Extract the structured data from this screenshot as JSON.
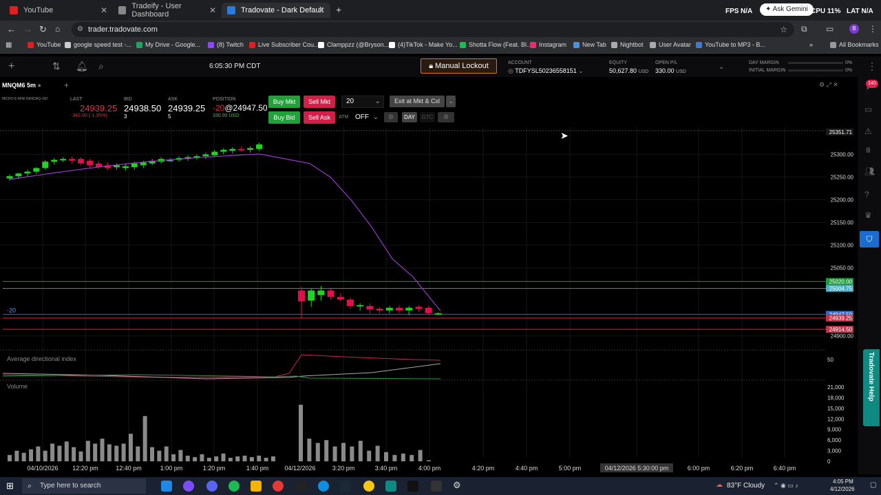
{
  "browser": {
    "tabs": [
      {
        "title": "YouTube",
        "color": "#e02020"
      },
      {
        "title": "Tradeify - User Dashboard",
        "color": "#888888"
      },
      {
        "title": "Tradovate - Dark Default",
        "color": "#2a7ae0"
      }
    ],
    "url": "trader.tradovate.com",
    "right_status": {
      "fps_label": "FPS",
      "fps_value": "N/A",
      "cpu": "CPU 11%",
      "lat": "LAT N/A",
      "gemini": "Ask Gemini"
    },
    "bookmarks": [
      {
        "label": "YouTube",
        "color": "#e02020"
      },
      {
        "label": "google speed test -...",
        "color": "#cccccc"
      },
      {
        "label": "My Drive - Google...",
        "color": "#1fa463"
      },
      {
        "label": "(8) Twitch",
        "color": "#9146ff"
      },
      {
        "label": "Live Subscriber Cou...",
        "color": "#e02020"
      },
      {
        "label": "Clamppzz (@Bryson...",
        "color": "#ffffff"
      },
      {
        "label": "(4)TikTok - Make Yo...",
        "color": "#ffffff"
      },
      {
        "label": "Shotta Flow (Feat. Bl...",
        "color": "#1db954"
      },
      {
        "label": "Instagram",
        "color": "#e1306c"
      },
      {
        "label": "New Tab",
        "color": "#4a90e2"
      },
      {
        "label": "Nightbot",
        "color": "#aaaaaa"
      },
      {
        "label": "User Avatar",
        "color": "#aaaaaa"
      },
      {
        "label": "YouTube to MP3 - B...",
        "color": "#3d7bd9"
      }
    ],
    "all_bookmarks": "All Bookmarks"
  },
  "app": {
    "time": "6:05:30 PM CDT",
    "manual_lockout": "Manual Lockout",
    "account_label": "ACCOUNT",
    "account_value": "TDFYSL50236558151",
    "equity_label": "EQUITY",
    "equity_value": "50,627.80",
    "equity_unit": "USD",
    "openpl_label": "OPEN P/L",
    "openpl_value": "330.00",
    "openpl_unit": "USD",
    "day_margin_label": "DAY MARGIN",
    "day_margin_value": "0%",
    "initial_margin_label": "INITIAL MARGIN",
    "initial_margin_value": "0%"
  },
  "chart_header": {
    "symbol": "MNQM6",
    "interval": "5m",
    "description": "MICRO E-MINI NASDAQ-100",
    "last_label": "LAST",
    "last_value": "24939.25",
    "last_change": "-342.00 (-1.35%)",
    "bid_label": "BID",
    "bid_value": "24938.50",
    "bid_size": "3",
    "ask_label": "ASK",
    "ask_value": "24939.25",
    "ask_size": "5",
    "position_label": "POSITION",
    "position_qty": "-20",
    "position_value": "@24947.50",
    "position_pl": "330.00 USD",
    "buy_mkt": "Buy Mkt",
    "sell_mkt": "Sell Mkt",
    "buy_bid": "Buy Bid",
    "sell_ask": "Sell Ask",
    "qty": "20",
    "exit": "Exit at Mkt & Cxl",
    "atm": "ATM",
    "atm_value": "OFF",
    "day": "DAY",
    "gtc": "GTC"
  },
  "chart_data": {
    "type": "candlestick",
    "y_ticks": [
      "25300.00",
      "25250.00",
      "25200.00",
      "25150.00",
      "25100.00",
      "25050.00",
      "24900.00"
    ],
    "y_range": [
      24860,
      25360
    ],
    "price_tags": [
      {
        "label": "25351.71",
        "color": "#1a1a1a"
      },
      {
        "label": "25020.00",
        "color": "#1f9a3a"
      },
      {
        "label": "25004.75",
        "color": "#4ab0c8"
      },
      {
        "label": "24947.50",
        "color": "#2a6fc9"
      },
      {
        "label": "24939.25",
        "color": "#c0334a"
      },
      {
        "label": "24914.50",
        "color": "#c0334a"
      }
    ],
    "x_labels": [
      "04/10/2026",
      "12:20 pm",
      "12:40 pm",
      "1:00 pm",
      "1:20 pm",
      "1:40 pm",
      "04/12/2026",
      "3:20 pm",
      "3:40 pm",
      "4:00 pm",
      "4:20 pm",
      "4:40 pm",
      "5:00 pm",
      "04/12/2026 5:30:00 pm",
      "6:00 pm",
      "6:20 pm",
      "6:40 pm"
    ],
    "position_marker": "-20",
    "candles_session1": [
      [
        25247,
        25256,
        25242,
        25252
      ],
      [
        25252,
        25260,
        25246,
        25258
      ],
      [
        25258,
        25266,
        25251,
        25262
      ],
      [
        25262,
        25272,
        25257,
        25270
      ],
      [
        25270,
        25288,
        25266,
        25284
      ],
      [
        25284,
        25292,
        25278,
        25288
      ],
      [
        25288,
        25294,
        25283,
        25290
      ],
      [
        25290,
        25295,
        25280,
        25286
      ],
      [
        25290,
        25294,
        25276,
        25280
      ],
      [
        25286,
        25290,
        25272,
        25276
      ],
      [
        25280,
        25286,
        25268,
        25272
      ],
      [
        25276,
        25282,
        25266,
        25270
      ],
      [
        25272,
        25280,
        25266,
        25276
      ],
      [
        25270,
        25278,
        25264,
        25274
      ],
      [
        25272,
        25284,
        25266,
        25280
      ],
      [
        25276,
        25286,
        25270,
        25282
      ],
      [
        25280,
        25290,
        25276,
        25286
      ],
      [
        25284,
        25294,
        25280,
        25290
      ],
      [
        25288,
        25292,
        25284,
        25288
      ],
      [
        25288,
        25296,
        25284,
        25292
      ],
      [
        25290,
        25298,
        25286,
        25294
      ],
      [
        25294,
        25300,
        25288,
        25296
      ],
      [
        25296,
        25304,
        25290,
        25300
      ],
      [
        25298,
        25310,
        25294,
        25306
      ],
      [
        25306,
        25314,
        25300,
        25310
      ],
      [
        25308,
        25316,
        25302,
        25312
      ],
      [
        25312,
        25318,
        25306,
        25310
      ],
      [
        25310,
        25318,
        25304,
        25314
      ],
      [
        25312,
        25326,
        25308,
        25322
      ]
    ],
    "candles_session2": [
      [
        25000,
        25008,
        24940,
        24976
      ],
      [
        24978,
        25004,
        24964,
        25000
      ],
      [
        24990,
        25010,
        24978,
        25000
      ],
      [
        25000,
        25004,
        24980,
        24986
      ],
      [
        24986,
        24994,
        24976,
        24980
      ],
      [
        24980,
        24984,
        24960,
        24966
      ],
      [
        24966,
        24972,
        24956,
        24968
      ],
      [
        24966,
        24972,
        24950,
        24958
      ],
      [
        24960,
        24964,
        24950,
        24956
      ],
      [
        24956,
        24966,
        24950,
        24962
      ],
      [
        24962,
        24968,
        24950,
        24956
      ],
      [
        24956,
        24966,
        24946,
        24962
      ],
      [
        24964,
        24968,
        24954,
        24960
      ],
      [
        24962,
        24966,
        24946,
        24950
      ],
      [
        24948,
        24952,
        24946,
        24950
      ]
    ],
    "adx_label": "Average directional index",
    "adx_tick": "50",
    "volume_label": "Volume",
    "volume_ticks": [
      "21,000",
      "18,000",
      "15,000",
      "12,000",
      "9,000",
      "6,000",
      "3,000",
      "0"
    ],
    "volume_session1": [
      1800,
      3000,
      2400,
      3400,
      4200,
      3000,
      5000,
      4400,
      5600,
      4000,
      2800,
      5800,
      5000,
      6400,
      4800,
      4400,
      5000,
      7800,
      4200,
      12800,
      4000,
      3000,
      4200,
      2000,
      3200,
      1600,
      1200,
      2000,
      1000,
      1400,
      2200,
      1000,
      1400,
      1600,
      1200,
      1600,
      1000,
      1400
    ],
    "volume_session2": [
      16000,
      6400,
      5200,
      6000,
      4200,
      5200,
      4200,
      5800,
      3000,
      4400,
      2600,
      1800,
      2200,
      1800,
      3200,
      300
    ],
    "colors": {
      "up": "#22d422",
      "down": "#e0104a",
      "ma": "#9a3ad0",
      "green_line": "#1f9a3a",
      "red_line": "#c0334a",
      "blue_line": "#2a6fc9"
    }
  },
  "right_sidebar": {
    "badge": "140",
    "help": "Tradovate Help"
  },
  "taskbar": {
    "search_placeholder": "Type here to search",
    "weather": "83°F  Cloudy",
    "clock_time": "4:05 PM",
    "clock_date": "4/12/2026"
  }
}
